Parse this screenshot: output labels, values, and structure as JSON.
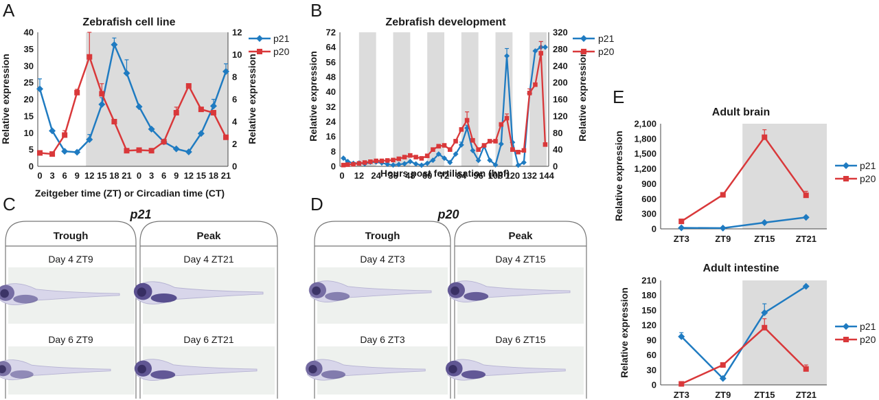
{
  "colors": {
    "p21": "#1f7bc1",
    "p20": "#d9383a",
    "shade": "#dcdcdc",
    "tabstroke": "#777777"
  },
  "panel_labels": [
    "A",
    "B",
    "C",
    "D",
    "E"
  ],
  "chart_data": [
    {
      "id": "A",
      "type": "line",
      "title": "Zebrafish cell line",
      "xlabel": "Zeitgeber time (ZT) or Circadian time (CT)",
      "ylabel": "Relative expression",
      "y2label": "Relative expression",
      "categories": [
        "0",
        "3",
        "6",
        "9",
        "12",
        "15",
        "18",
        "21",
        "0",
        "3",
        "6",
        "9",
        "12",
        "15",
        "18",
        "21"
      ],
      "ylim": [
        0,
        40
      ],
      "yticks": [
        "0",
        "5",
        "10",
        "15",
        "20",
        "25",
        "30",
        "35",
        "40"
      ],
      "y2lim": [
        0,
        12
      ],
      "y2ticks": [
        "0",
        "2",
        "4",
        "6",
        "8",
        "10",
        "12"
      ],
      "shade": [
        [
          4,
          15
        ]
      ],
      "legend": "top-right",
      "series": [
        {
          "name": "p21",
          "axis": "left",
          "marker": "diamond",
          "values": [
            23.1,
            10.6,
            4.5,
            4.2,
            8.0,
            18.5,
            36.3,
            27.8,
            17.8,
            11.1,
            7.3,
            5.2,
            4.3,
            9.8,
            18.0,
            28.3
          ],
          "errors": [
            3.0,
            0,
            0,
            0,
            1.5,
            2.0,
            2.0,
            4.0,
            0,
            0,
            0,
            0,
            0,
            0,
            2.0,
            2.3
          ]
        },
        {
          "name": "p20",
          "axis": "right",
          "marker": "square",
          "values": [
            1.2,
            1.1,
            2.8,
            6.6,
            9.8,
            6.5,
            4.0,
            1.4,
            1.45,
            1.4,
            2.2,
            4.8,
            7.2,
            5.1,
            4.8,
            2.6
          ],
          "errors": [
            0,
            0,
            0.4,
            0.3,
            2.2,
            0.9,
            0,
            0,
            0,
            0,
            0,
            0.5,
            0,
            0,
            0,
            0
          ]
        }
      ]
    },
    {
      "id": "B",
      "type": "line",
      "title": "Zebrafish development",
      "xlabel": "Hours post fertilisation (hpf)",
      "ylabel": "Relative expression",
      "y2label": "Relative expression",
      "xlim": [
        0,
        144
      ],
      "xticks": [
        "0",
        "12",
        "24",
        "36",
        "48",
        "60",
        "72",
        "84",
        "96",
        "108",
        "120",
        "132",
        "144"
      ],
      "ylim": [
        0,
        72
      ],
      "yticks": [
        "0",
        "8",
        "16",
        "24",
        "32",
        "40",
        "48",
        "56",
        "64",
        "72"
      ],
      "y2lim": [
        0,
        320
      ],
      "y2ticks": [
        "0",
        "40",
        "80",
        "120",
        "160",
        "200",
        "240",
        "280",
        "320"
      ],
      "shade": [
        [
          12,
          24
        ],
        [
          36,
          48
        ],
        [
          60,
          72
        ],
        [
          84,
          96
        ],
        [
          108,
          120
        ],
        [
          132,
          144
        ]
      ],
      "legend": "top-right",
      "series": [
        {
          "name": "p21",
          "axis": "left",
          "marker": "diamond",
          "x": [
            1,
            4,
            8,
            12,
            16,
            20,
            24,
            28,
            32,
            36,
            40,
            44,
            48,
            52,
            56,
            60,
            64,
            68,
            72,
            76,
            80,
            84,
            88,
            92,
            96,
            100,
            104,
            108,
            112,
            116,
            120,
            124,
            128,
            132,
            136,
            140,
            143
          ],
          "values": [
            4.4,
            2.6,
            1.6,
            1.8,
            1.4,
            2.2,
            2.3,
            1.8,
            1.1,
            0.7,
            1.0,
            1.4,
            2.6,
            1.3,
            0.6,
            1.6,
            3.3,
            6.6,
            4.4,
            2.1,
            6.6,
            11.5,
            20.6,
            8.5,
            3.2,
            10.9,
            3.3,
            0.8,
            12.0,
            59.3,
            12.9,
            0.6,
            2.1,
            39.2,
            62.0,
            64.0,
            64.0
          ],
          "errors": [
            0,
            0,
            0,
            0,
            0,
            0,
            0,
            0,
            0,
            0,
            0,
            0,
            0,
            0,
            0,
            0,
            0,
            0,
            0,
            0,
            0,
            1.5,
            1.5,
            0,
            0,
            0,
            0,
            0,
            0,
            4.0,
            0,
            0,
            0,
            0,
            0,
            3.0,
            0
          ]
        },
        {
          "name": "p20",
          "axis": "right",
          "marker": "square",
          "x": [
            1,
            4,
            8,
            12,
            16,
            20,
            24,
            28,
            32,
            36,
            40,
            44,
            48,
            52,
            56,
            60,
            64,
            68,
            72,
            76,
            80,
            84,
            88,
            92,
            96,
            100,
            104,
            108,
            112,
            116,
            120,
            124,
            128,
            132,
            136,
            140,
            143
          ],
          "values": [
            3,
            4,
            5,
            7,
            9,
            11,
            13,
            13,
            14,
            15,
            18,
            22,
            26,
            22,
            19,
            25,
            40,
            48,
            50,
            40,
            60,
            88,
            110,
            62,
            40,
            50,
            60,
            60,
            100,
            115,
            40,
            34,
            38,
            175,
            195,
            270,
            52
          ],
          "errors": [
            0,
            0,
            0,
            0,
            0,
            0,
            0,
            0,
            0,
            0,
            0,
            0,
            0,
            0,
            0,
            0,
            0,
            0,
            0,
            0,
            0,
            0,
            20,
            0,
            0,
            0,
            0,
            0,
            0,
            10,
            0,
            0,
            0,
            10,
            0,
            28,
            0
          ]
        }
      ]
    },
    {
      "id": "E-brain",
      "type": "line",
      "title": "Adult brain",
      "ylabel": "Relative expression",
      "categories": [
        "ZT3",
        "ZT9",
        "ZT15",
        "ZT21"
      ],
      "ylim": [
        0,
        2100
      ],
      "yticks": [
        "0",
        "300",
        "600",
        "900",
        "1,200",
        "1,500",
        "1,800",
        "2,100"
      ],
      "shade": [
        [
          2,
          4
        ]
      ],
      "legend": "right",
      "series": [
        {
          "name": "p21",
          "marker": "diamond",
          "values": [
            20,
            15,
            125,
            230
          ],
          "errors": [
            0,
            0,
            0,
            0
          ]
        },
        {
          "name": "p20",
          "marker": "square",
          "values": [
            150,
            680,
            1830,
            670
          ],
          "errors": [
            0,
            0,
            150,
            80
          ]
        }
      ]
    },
    {
      "id": "E-intestine",
      "type": "line",
      "title": "Adult intestine",
      "ylabel": "Relative expression",
      "categories": [
        "ZT3",
        "ZT9",
        "ZT15",
        "ZT21"
      ],
      "ylim": [
        0,
        210
      ],
      "yticks": [
        "0",
        "30",
        "60",
        "90",
        "120",
        "150",
        "180",
        "210"
      ],
      "shade": [
        [
          2,
          4
        ]
      ],
      "legend": "right",
      "series": [
        {
          "name": "p21",
          "marker": "diamond",
          "values": [
            97,
            13,
            145,
            198
          ],
          "errors": [
            8,
            0,
            18,
            0
          ]
        },
        {
          "name": "p20",
          "marker": "square",
          "values": [
            2,
            40,
            115,
            32
          ],
          "errors": [
            0,
            4,
            18,
            8
          ]
        }
      ]
    }
  ],
  "images": [
    {
      "id": "C",
      "title": "p21",
      "tabs": [
        {
          "label": "Trough",
          "captions": [
            "Day 4 ZT9",
            "Day 6 ZT9"
          ]
        },
        {
          "label": "Peak",
          "captions": [
            "Day 4 ZT21",
            "Day 6 ZT21"
          ]
        }
      ]
    },
    {
      "id": "D",
      "title": "p20",
      "tabs": [
        {
          "label": "Trough",
          "captions": [
            "Day 4 ZT3",
            "Day 6 ZT3"
          ]
        },
        {
          "label": "Peak",
          "captions": [
            "Day 4 ZT15",
            "Day 6 ZT15"
          ]
        }
      ]
    }
  ]
}
